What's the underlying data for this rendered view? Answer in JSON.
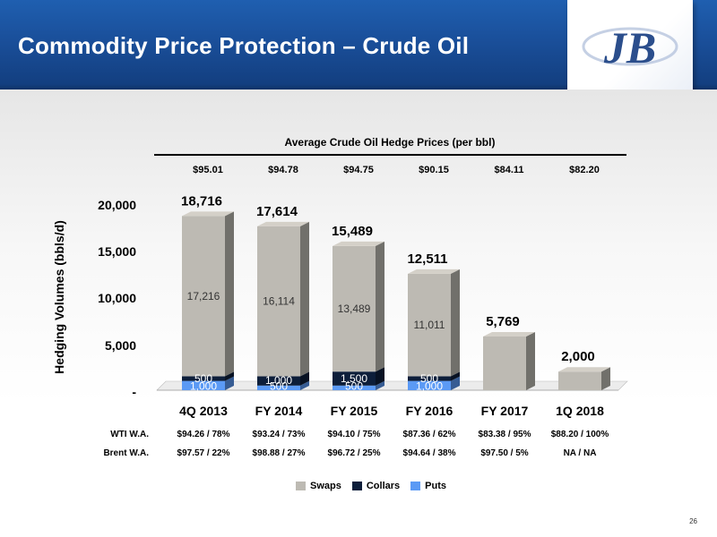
{
  "slide": {
    "title": "Commodity Price Protection – Crude Oil",
    "page_number": "26"
  },
  "logo": {
    "name": "company-logo",
    "monogram": "JB"
  },
  "hedge_prices": {
    "title": "Average Crude Oil Hedge Prices (per bbl)",
    "values": [
      "$95.01",
      "$94.78",
      "$94.75",
      "$90.15",
      "$84.11",
      "$82.20"
    ]
  },
  "chart_data": {
    "type": "bar",
    "stacked": true,
    "categories": [
      "4Q 2013",
      "FY 2014",
      "FY 2015",
      "FY 2016",
      "FY 2017",
      "1Q 2018"
    ],
    "series": [
      {
        "name": "Puts",
        "color": "#5b9af5",
        "values": [
          1000,
          500,
          500,
          1000,
          0,
          0
        ]
      },
      {
        "name": "Collars",
        "color": "#0d1e3a",
        "values": [
          500,
          1000,
          1500,
          500,
          0,
          0
        ]
      },
      {
        "name": "Swaps",
        "color": "#bdbab3",
        "values": [
          17216,
          16114,
          13489,
          11011,
          5769,
          2000
        ]
      }
    ],
    "totals": [
      18716,
      17614,
      15489,
      12511,
      5769,
      2000
    ],
    "total_labels": [
      "18,716",
      "17,614",
      "15,489",
      "12,511",
      "5,769",
      "2,000"
    ],
    "segment_labels": {
      "Swaps": [
        "17,216",
        "16,114",
        "13,489",
        "11,011",
        "",
        ""
      ],
      "Collars": [
        "500",
        "1,000",
        "1,500",
        "500",
        "",
        ""
      ],
      "Puts": [
        "1,000",
        "500",
        "500",
        "1,000",
        "",
        ""
      ]
    },
    "ylabel": "Hedging Volumes (bbls/d)",
    "ylim": [
      0,
      20000
    ],
    "yticks": [
      0,
      5000,
      10000,
      15000,
      20000
    ],
    "ytick_labels": [
      "-",
      "5,000",
      "10,000",
      "15,000",
      "20,000"
    ],
    "grid": false,
    "legend": "bottom",
    "legend_order": [
      "Swaps",
      "Collars",
      "Puts"
    ]
  },
  "table": {
    "rows": [
      {
        "label": "WTI W.A.",
        "values": [
          "$94.26 / 78%",
          "$93.24 / 73%",
          "$94.10 / 75%",
          "$87.36 / 62%",
          "$83.38 / 95%",
          "$88.20 / 100%"
        ]
      },
      {
        "label": "Brent W.A.",
        "values": [
          "$97.57 / 22%",
          "$98.88 / 27%",
          "$96.72 / 25%",
          "$94.64 / 38%",
          "$97.50 / 5%",
          "NA / NA"
        ]
      }
    ]
  }
}
